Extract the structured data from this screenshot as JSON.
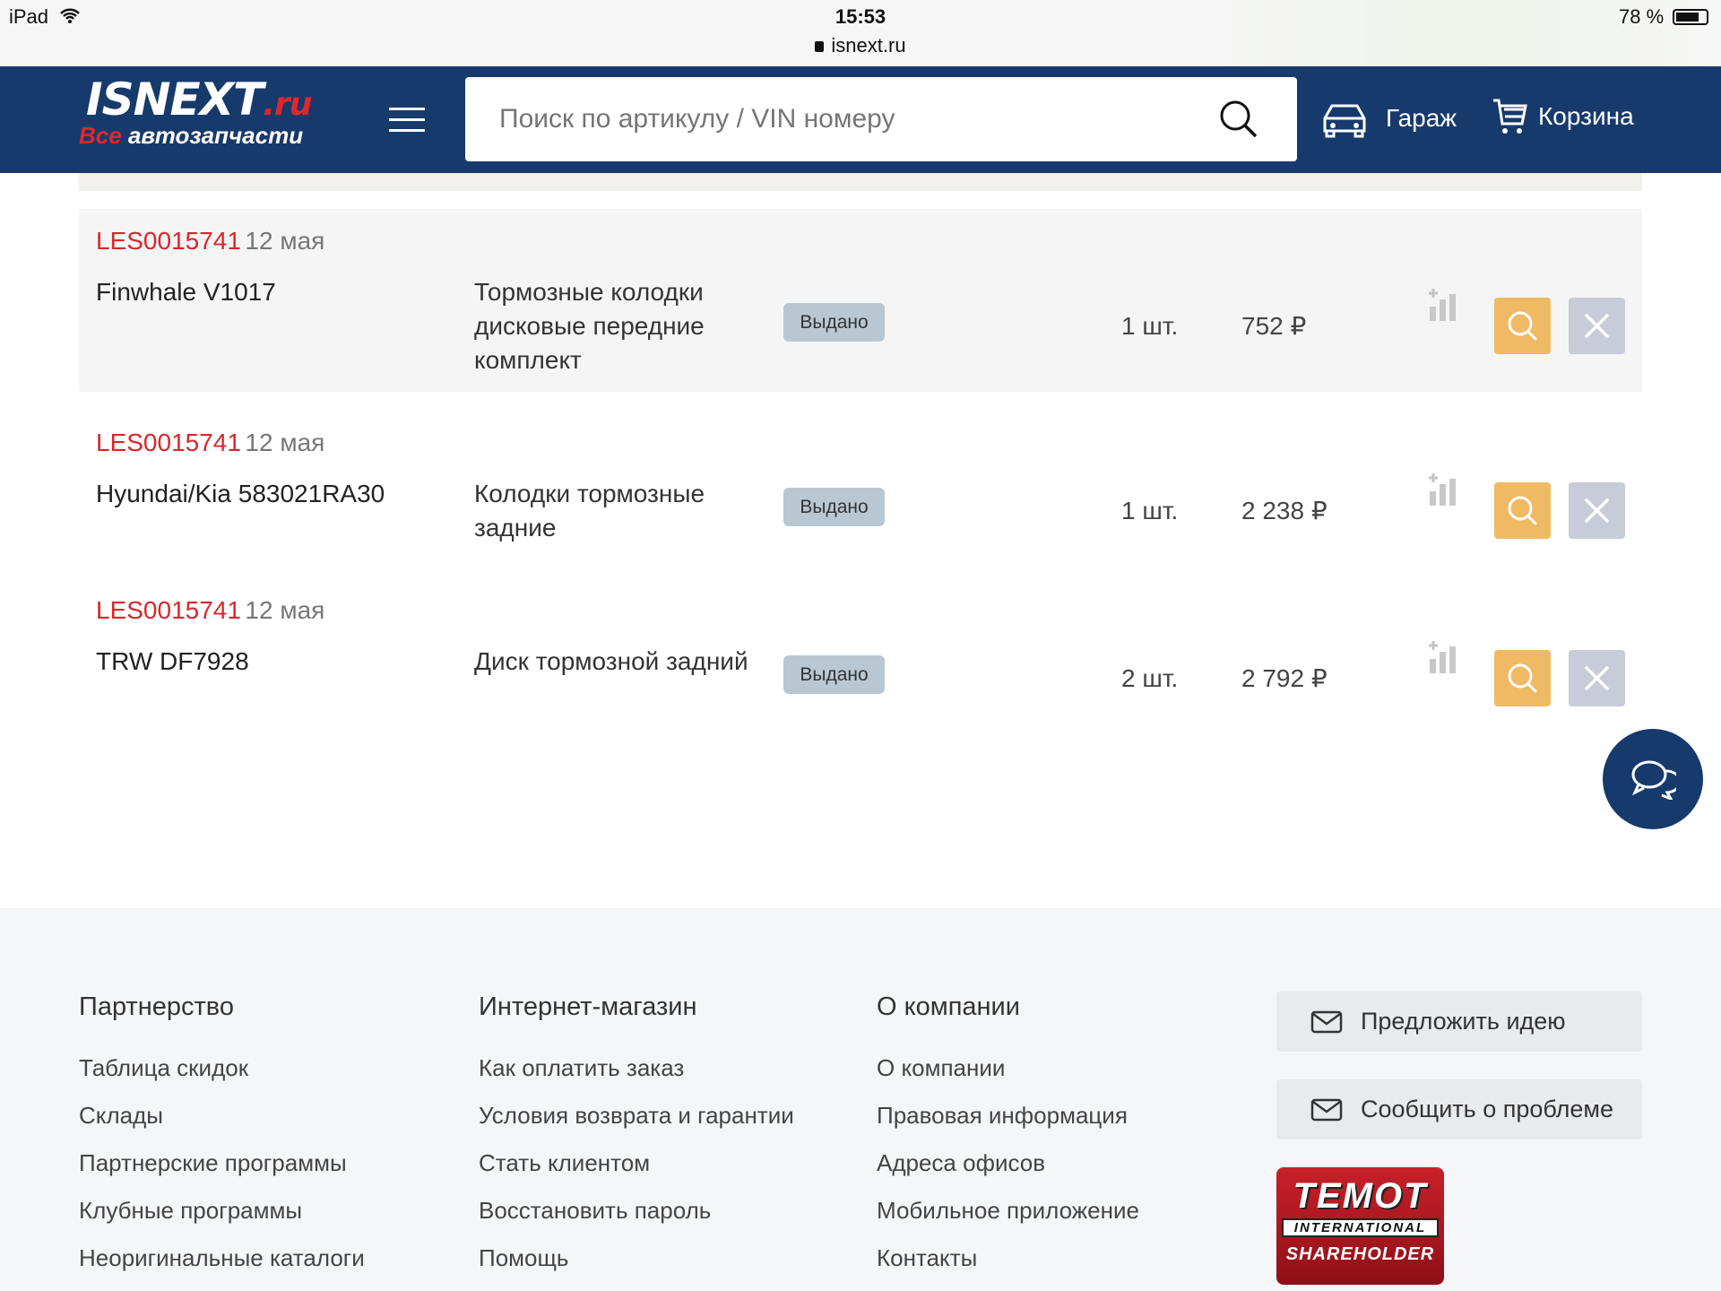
{
  "status_bar": {
    "device": "iPad",
    "time": "15:53",
    "url": "isnext.ru",
    "battery": "78 %"
  },
  "header": {
    "logo_main": "ISNEXT",
    "logo_ru": ".ru",
    "logo_sub_red": "Все",
    "logo_sub": "автозапчасти",
    "search_placeholder": "Поиск по артикулу / VIN номеру",
    "garage": "Гараж",
    "cart": "Корзина"
  },
  "orders": [
    {
      "id": "LES0015741",
      "date": "12 мая",
      "part": "Finwhale V1017",
      "desc": "Тормозные колодки дисковые передние комплект",
      "status": "Выдано",
      "qty": "1 шт.",
      "price": "752 ₽"
    },
    {
      "id": "LES0015741",
      "date": "12 мая",
      "part": "Hyundai/Kia 583021RA30",
      "desc": "Колодки тормозные задние",
      "status": "Выдано",
      "qty": "1 шт.",
      "price": "2 238 ₽"
    },
    {
      "id": "LES0015741",
      "date": "12 мая",
      "part": "TRW DF7928",
      "desc": "Диск тормозной задний",
      "status": "Выдано",
      "qty": "2 шт.",
      "price": "2 792 ₽"
    }
  ],
  "footer": {
    "columns": [
      {
        "title": "Партнерство",
        "links": [
          "Таблица скидок",
          "Склады",
          "Партнерские программы",
          "Клубные программы",
          "Неоригинальные каталоги"
        ]
      },
      {
        "title": "Интернет-магазин",
        "links": [
          "Как оплатить заказ",
          "Условия возврата и гарантии",
          "Стать клиентом",
          "Восстановить пароль",
          "Помощь"
        ]
      },
      {
        "title": "О компании",
        "links": [
          "О компании",
          "Правовая информация",
          "Адреса офисов",
          "Мобильное приложение",
          "Контакты"
        ]
      }
    ],
    "idea_button": "Предложить идею",
    "problem_button": "Сообщить о проблеме",
    "temot_logo": {
      "line1": "TEMOT",
      "line2": "INTERNATIONAL",
      "line3": "SHAREHOLDER"
    }
  },
  "colors": {
    "header": "#173a6c",
    "accent_red": "#d9262b",
    "search_button": "#f0b963",
    "remove_button": "#c8ccd8",
    "status_badge": "#b9c7d2"
  }
}
